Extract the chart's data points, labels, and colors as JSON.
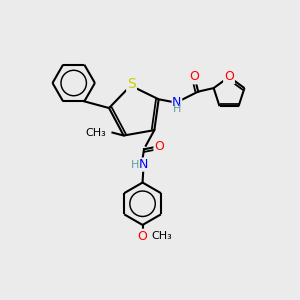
{
  "bg_color": "#ebebeb",
  "atom_colors": {
    "C": "#000000",
    "H": "#5f9ea0",
    "N": "#0000ff",
    "O": "#ff0000",
    "S": "#cccc00"
  },
  "bond_color": "#000000",
  "line_width": 1.5,
  "font_size_atom": 9,
  "font_size_small": 8
}
